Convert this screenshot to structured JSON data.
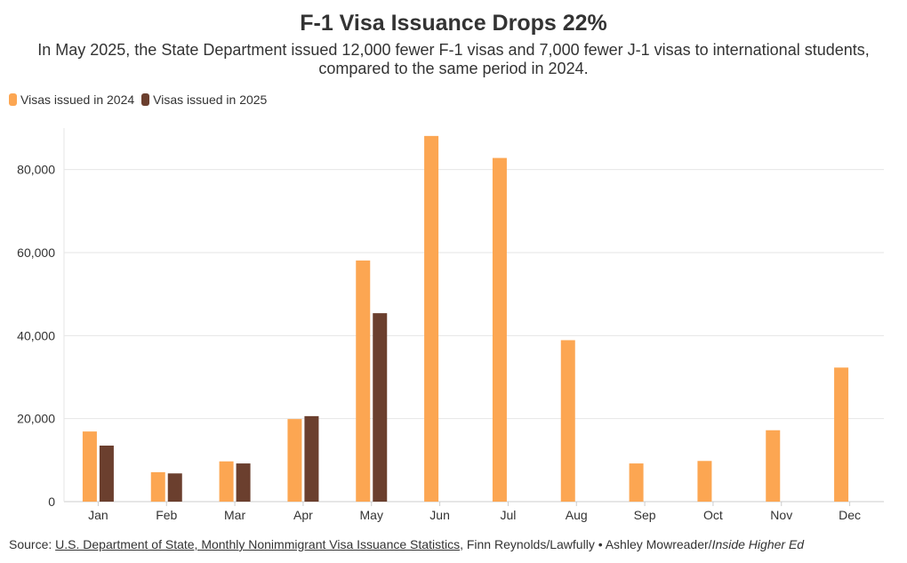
{
  "title": "F-1 Visa Issuance Drops 22%",
  "subtitle": "In May 2025, the State Department issued 12,000 fewer F-1 visas and 7,000 fewer J-1 visas to international students, compared to the same period in 2024.",
  "colors": {
    "s2024": "#fca652",
    "s2025": "#6b3f2e",
    "grid": "#e6e6e6",
    "axis": "#555555"
  },
  "source": {
    "prefix": "Source: ",
    "link_text": "U.S. Department of State, Monthly Nonimmigrant Visa Issuance Statistics",
    "middle": ", Finn Reynolds/Lawfully • Ashley Mowreader/",
    "publication": "Inside Higher Ed"
  },
  "chart_data": {
    "type": "bar",
    "title": "F-1 Visa Issuance Drops 22%",
    "xlabel": "",
    "ylabel": "",
    "ylim": [
      0,
      90000
    ],
    "yticks": [
      0,
      20000,
      40000,
      60000,
      80000
    ],
    "ytick_labels": [
      "0",
      "20,000",
      "40,000",
      "60,000",
      "80,000"
    ],
    "grid": true,
    "legend_position": "top-left",
    "categories": [
      "Jan",
      "Feb",
      "Mar",
      "Apr",
      "May",
      "Jun",
      "Jul",
      "Aug",
      "Sep",
      "Oct",
      "Nov",
      "Dec"
    ],
    "series": [
      {
        "name": "Visas issued in 2024",
        "values": [
          16900,
          7100,
          9700,
          19900,
          58100,
          88100,
          82800,
          38900,
          9200,
          9800,
          17200,
          32300
        ]
      },
      {
        "name": "Visas issued in 2025",
        "values": [
          13500,
          6800,
          9200,
          20600,
          45400,
          null,
          null,
          null,
          null,
          null,
          null,
          null
        ]
      }
    ]
  }
}
